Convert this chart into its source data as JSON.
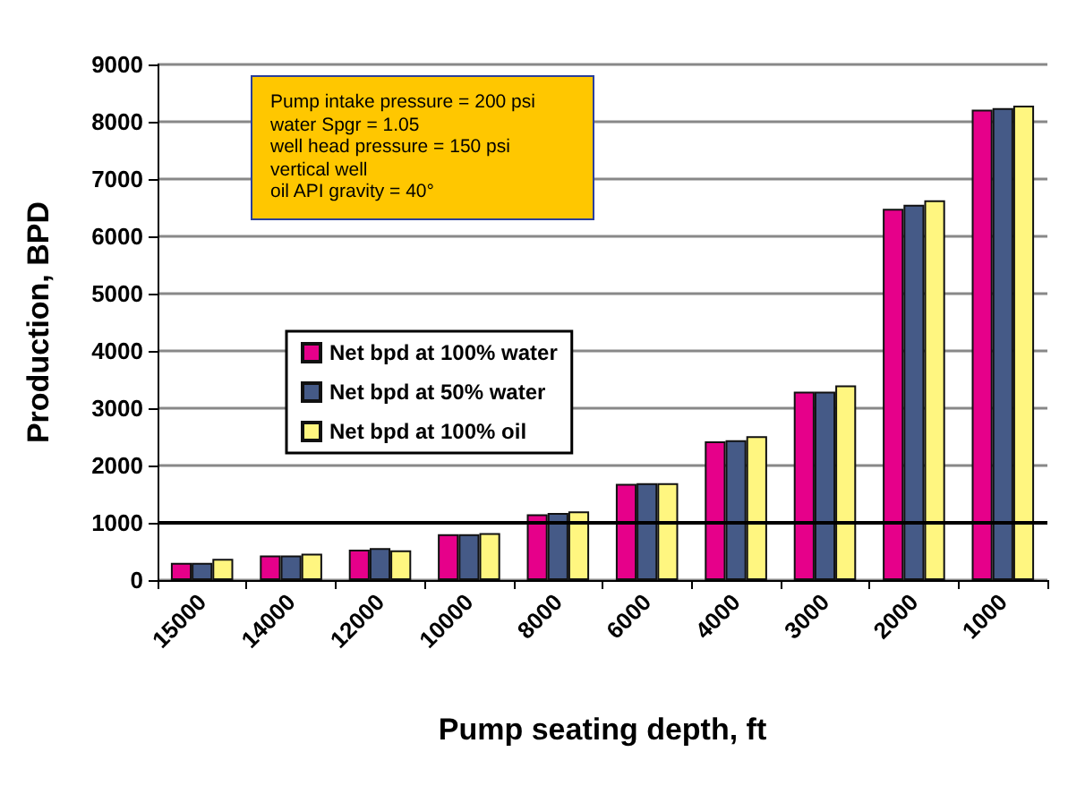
{
  "chart_data": {
    "type": "bar",
    "xlabel": "Pump seating depth, ft",
    "ylabel": "Production, BPD",
    "categories": [
      "15000",
      "14000",
      "12000",
      "10000",
      "8000",
      "6000",
      "4000",
      "3000",
      "2000",
      "1000"
    ],
    "series": [
      {
        "name": "Net bpd at 100% water",
        "color": "#e6008a",
        "values": [
          300,
          430,
          530,
          800,
          1150,
          1680,
          2420,
          3290,
          6480,
          8210
        ]
      },
      {
        "name": "Net bpd at 50% water",
        "color": "#455a87",
        "values": [
          300,
          430,
          560,
          800,
          1170,
          1690,
          2440,
          3290,
          6550,
          8240
        ]
      },
      {
        "name": "Net bpd at 100% oil",
        "color": "#fff680",
        "values": [
          370,
          460,
          520,
          820,
          1200,
          1690,
          2510,
          3400,
          6630,
          8280
        ]
      }
    ],
    "ylim": [
      0,
      9000
    ],
    "yticks": [
      0,
      1000,
      2000,
      3000,
      4000,
      5000,
      6000,
      7000,
      8000,
      9000
    ],
    "grid": "y",
    "legend": "left",
    "ref_lines": [
      {
        "axis": "y",
        "value": 1000,
        "color": "#000000"
      }
    ],
    "annotations": [
      "Pump intake pressure = 200 psi",
      "water Spgr = 1.05",
      "well head pressure = 150 psi",
      "vertical well",
      "oil API gravity = 40°"
    ]
  }
}
